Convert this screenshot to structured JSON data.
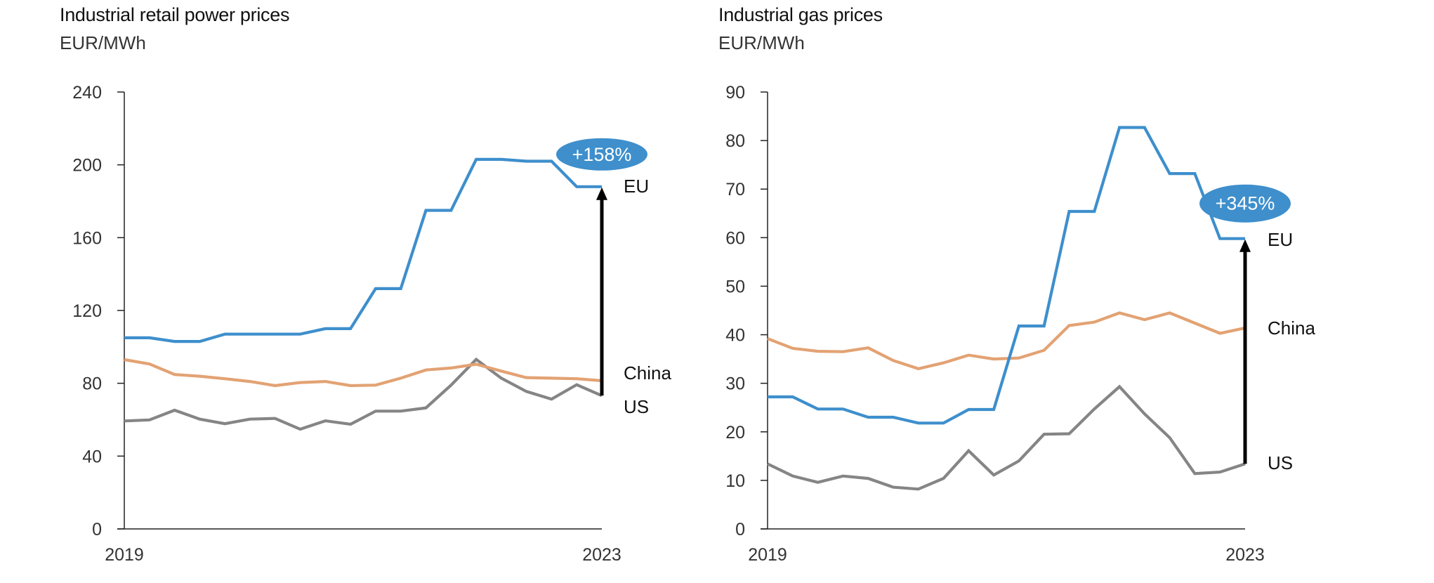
{
  "colors": {
    "EU": "#3e8fcc",
    "China": "#e3a273",
    "US": "#858585",
    "axis": "#222222",
    "arrow": "#000000",
    "badge": "#3e8fcc"
  },
  "chart_data": [
    {
      "type": "line",
      "title": "Industrial retail power prices",
      "subtitle": "EUR/MWh",
      "xlabel": "",
      "ylabel": "EUR/MWh",
      "x_tick_labels": [
        "2019",
        "2023"
      ],
      "x_range": [
        "2019",
        "2023"
      ],
      "n_points": 20,
      "ylim": [
        0,
        240
      ],
      "y_ticks": [
        0,
        40,
        80,
        120,
        160,
        200,
        240
      ],
      "y_tick_labels": [
        "0",
        "40",
        "80",
        "120",
        "160",
        "200",
        "240"
      ],
      "grid": false,
      "series": [
        {
          "name": "EU",
          "values": [
            105,
            105,
            103,
            103,
            107,
            107,
            107,
            107,
            110,
            110,
            132,
            132,
            175,
            175,
            203,
            203,
            202,
            202,
            188,
            188
          ]
        },
        {
          "name": "China",
          "values": [
            93,
            90.6,
            84.8,
            83.9,
            82.5,
            81,
            78.7,
            80.4,
            81,
            78.7,
            79,
            82.8,
            87.3,
            88.4,
            90.5,
            86.7,
            83.1,
            82.8,
            82.5,
            81.4
          ]
        },
        {
          "name": "US",
          "values": [
            59.3,
            59.9,
            65.2,
            60.3,
            57.8,
            60.3,
            60.7,
            54.8,
            59.4,
            57.5,
            64.7,
            64.7,
            66.5,
            79,
            93.1,
            82.8,
            75.5,
            71.3,
            79.2,
            73.2
          ]
        }
      ],
      "series_labels": [
        "EU",
        "China",
        "US"
      ],
      "annotation": {
        "text": "+158%",
        "type": "arrow",
        "from_series": "US",
        "to_series": "EU",
        "at": "2023"
      }
    },
    {
      "type": "line",
      "title": "Industrial gas prices",
      "subtitle": "EUR/MWh",
      "xlabel": "",
      "ylabel": "EUR/MWh",
      "x_tick_labels": [
        "2019",
        "2023"
      ],
      "x_range": [
        "2019",
        "2023"
      ],
      "n_points": 20,
      "ylim": [
        0,
        90
      ],
      "y_ticks": [
        0,
        10,
        20,
        30,
        40,
        50,
        60,
        70,
        80,
        90
      ],
      "y_tick_labels": [
        "0",
        "10",
        "20",
        "30",
        "40",
        "50",
        "60",
        "70",
        "80",
        "90"
      ],
      "grid": false,
      "series": [
        {
          "name": "EU",
          "values": [
            27.2,
            27.2,
            24.7,
            24.7,
            23,
            23,
            21.8,
            21.8,
            24.6,
            24.6,
            41.8,
            41.8,
            65.4,
            65.4,
            82.7,
            82.7,
            73.2,
            73.2,
            59.8,
            59.8
          ]
        },
        {
          "name": "China",
          "values": [
            39.2,
            37.2,
            36.6,
            36.5,
            37.3,
            34.7,
            33,
            34.2,
            35.8,
            35,
            35.2,
            36.8,
            41.9,
            42.6,
            44.5,
            43.1,
            44.5,
            42.4,
            40.3,
            41.4
          ]
        },
        {
          "name": "US",
          "values": [
            13.4,
            10.9,
            9.6,
            10.9,
            10.4,
            8.6,
            8.2,
            10.4,
            16.1,
            11.1,
            14,
            19.5,
            19.6,
            24.7,
            29.3,
            23.7,
            18.8,
            11.4,
            11.7,
            13.4
          ]
        }
      ],
      "series_labels": [
        "EU",
        "China",
        "US"
      ],
      "annotation": {
        "text": "+345%",
        "type": "arrow",
        "from_series": "US",
        "to_series": "EU",
        "at": "2023"
      }
    }
  ]
}
